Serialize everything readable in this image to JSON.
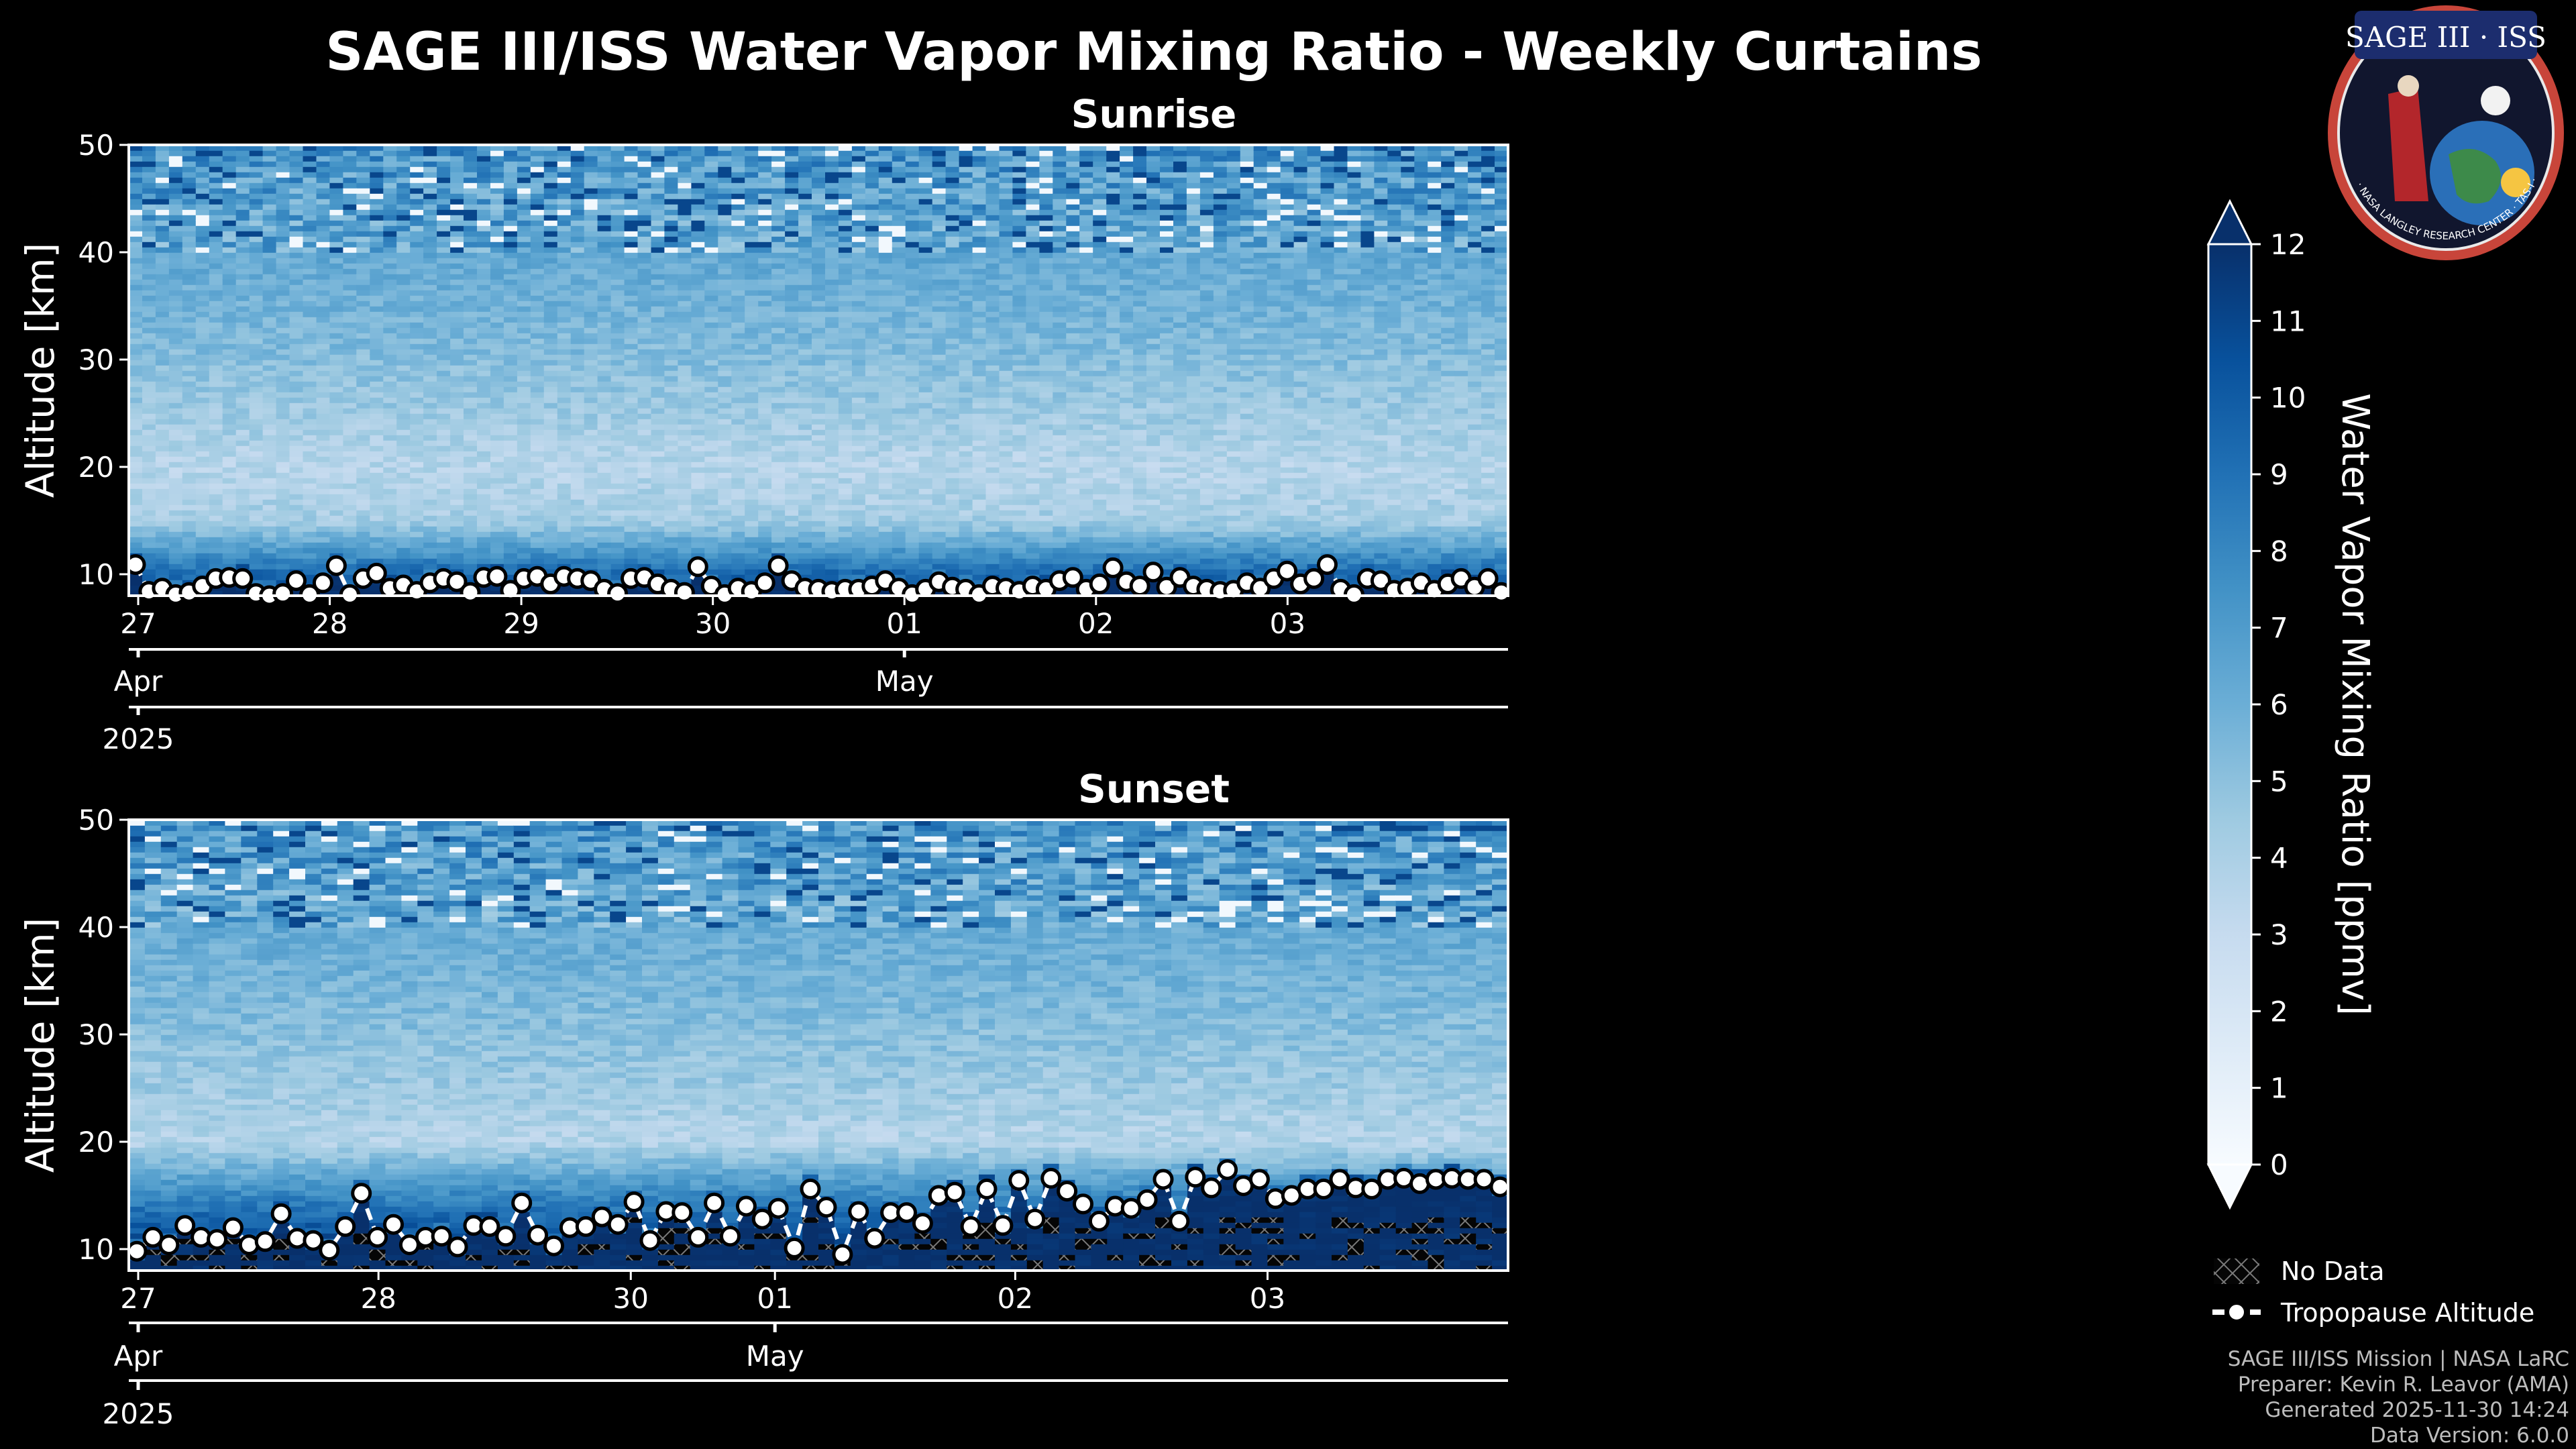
{
  "page": {
    "title": "SAGE III/ISS Water Vapor Mixing Ratio - Weekly Curtains"
  },
  "logo": {
    "text_top": "SAGE III · ISS",
    "text_ring": "BALL · NASA LANGLEY RESEARCH CENTER · TAS-I · ESA"
  },
  "legend": {
    "no_data": "No Data",
    "tropopause": "Tropopause Altitude"
  },
  "credits": {
    "line1": "SAGE III/ISS Mission | NASA LaRC",
    "line2": "Preparer: Kevin R. Leavor (AMA)",
    "line3": "Generated 2025-11-30 14:24",
    "line4": "Data Version: 6.0.0"
  },
  "colorbar": {
    "label": "Water Vapor Mixing Ratio [ppmv]",
    "min": 0,
    "max": 12,
    "ticks": [
      "0",
      "1",
      "2",
      "3",
      "4",
      "5",
      "6",
      "7",
      "8",
      "9",
      "10",
      "11",
      "12"
    ],
    "colors": [
      "#f7fbff",
      "#deebf7",
      "#c6dbef",
      "#9ecae1",
      "#6baed6",
      "#4292c6",
      "#2171b5",
      "#08519c",
      "#08306b"
    ],
    "extend": "both"
  },
  "chart_data": [
    {
      "type": "heatmap",
      "title": "Sunrise",
      "ylabel": "Altitude [km]",
      "xlabel": "",
      "ylim": [
        8,
        50
      ],
      "yticks": [
        "10",
        "20",
        "30",
        "40",
        "50"
      ],
      "xlim_days": [
        0,
        7.2
      ],
      "day_ticks": [
        {
          "label": "27",
          "day": 0
        },
        {
          "label": "28",
          "day": 1
        },
        {
          "label": "29",
          "day": 2
        },
        {
          "label": "30",
          "day": 3
        },
        {
          "label": "01",
          "day": 4
        },
        {
          "label": "02",
          "day": 5
        },
        {
          "label": "03",
          "day": 6
        }
      ],
      "month_ticks": [
        {
          "label": "Apr",
          "day": 0
        },
        {
          "label": "May",
          "day": 4
        }
      ],
      "year_ticks": [
        {
          "label": "2025",
          "day": 0
        }
      ],
      "tropopause_km": [
        10.9,
        8.4,
        8.7,
        8.1,
        8.3,
        8.9,
        9.6,
        9.7,
        9.6,
        8.2,
        8.0,
        8.2,
        9.4,
        8.1,
        9.2,
        10.8,
        8.1,
        9.6,
        10.1,
        8.7,
        9.0,
        8.4,
        9.2,
        9.6,
        9.3,
        8.3,
        9.7,
        9.8,
        8.5,
        9.6,
        9.8,
        9.1,
        9.8,
        9.6,
        9.4,
        8.6,
        8.2,
        9.6,
        9.7,
        9.1,
        8.6,
        8.3,
        10.7,
        8.9,
        8.1,
        8.7,
        8.4,
        9.2,
        10.8,
        9.4,
        8.7,
        8.6,
        8.4,
        8.6,
        8.6,
        8.9,
        9.4,
        8.7,
        8.1,
        8.6,
        9.3,
        8.8,
        8.6,
        8.1,
        8.9,
        8.7,
        8.4,
        8.9,
        8.6,
        9.4,
        9.7,
        8.6,
        9.1,
        10.6,
        9.3,
        8.9,
        10.2,
        8.8,
        9.7,
        8.9,
        8.6,
        8.4,
        8.5,
        9.2,
        8.7,
        9.6,
        10.3,
        9.1,
        9.6,
        10.9,
        8.6,
        8.1,
        9.6,
        9.4,
        8.5,
        8.7,
        9.2,
        8.5,
        9.1,
        9.6,
        8.8,
        9.6,
        8.3
      ],
      "grid": "off",
      "mean_profile_ppmv": {
        "altitudes_km": [
          10,
          15,
          20,
          25,
          30,
          35,
          40,
          45,
          50
        ],
        "values": [
          9.5,
          4.2,
          3.6,
          4.4,
          5.2,
          5.8,
          6.3,
          6.8,
          7.4
        ]
      }
    },
    {
      "type": "heatmap",
      "title": "Sunset",
      "ylabel": "Altitude [km]",
      "xlabel": "",
      "ylim": [
        8,
        50
      ],
      "yticks": [
        "10",
        "20",
        "30",
        "40",
        "50"
      ],
      "xlim_days": [
        0,
        5.74
      ],
      "day_ticks": [
        {
          "label": "27",
          "day": 0
        },
        {
          "label": "28",
          "day": 1
        },
        {
          "label": "30",
          "day": 2.05
        },
        {
          "label": "01",
          "day": 2.65
        },
        {
          "label": "02",
          "day": 3.65
        },
        {
          "label": "03",
          "day": 4.7
        }
      ],
      "month_ticks": [
        {
          "label": "Apr",
          "day": 0
        },
        {
          "label": "May",
          "day": 2.65
        }
      ],
      "year_ticks": [
        {
          "label": "2025",
          "day": 0
        }
      ],
      "tropopause_km": [
        9.8,
        11.1,
        10.4,
        12.2,
        11.1,
        10.9,
        12.0,
        10.4,
        10.7,
        13.3,
        11.0,
        10.8,
        9.9,
        12.1,
        15.2,
        11.1,
        12.3,
        10.4,
        11.1,
        11.2,
        10.2,
        12.2,
        12.1,
        11.2,
        14.3,
        11.3,
        10.3,
        12.0,
        12.1,
        13.0,
        12.3,
        14.4,
        10.8,
        13.5,
        13.4,
        11.1,
        14.3,
        11.2,
        14.0,
        12.8,
        13.8,
        10.1,
        15.6,
        13.9,
        9.5,
        13.5,
        11.0,
        13.4,
        13.4,
        12.4,
        15.0,
        15.3,
        12.1,
        15.6,
        12.2,
        16.4,
        12.8,
        16.6,
        15.4,
        14.2,
        12.6,
        14.0,
        13.8,
        14.6,
        16.5,
        12.6,
        16.7,
        15.7,
        17.4,
        15.9,
        16.5,
        14.7,
        15.0,
        15.6,
        15.6,
        16.5,
        15.7,
        15.6,
        16.5,
        16.6,
        16.1,
        16.5,
        16.6,
        16.5,
        16.5,
        15.8
      ],
      "grid": "off",
      "mean_profile_ppmv": {
        "altitudes_km": [
          10,
          15,
          20,
          25,
          30,
          35,
          40,
          45,
          50
        ],
        "values": [
          11.5,
          8.0,
          3.7,
          4.4,
          5.1,
          5.7,
          6.2,
          6.8,
          7.4
        ]
      }
    }
  ]
}
